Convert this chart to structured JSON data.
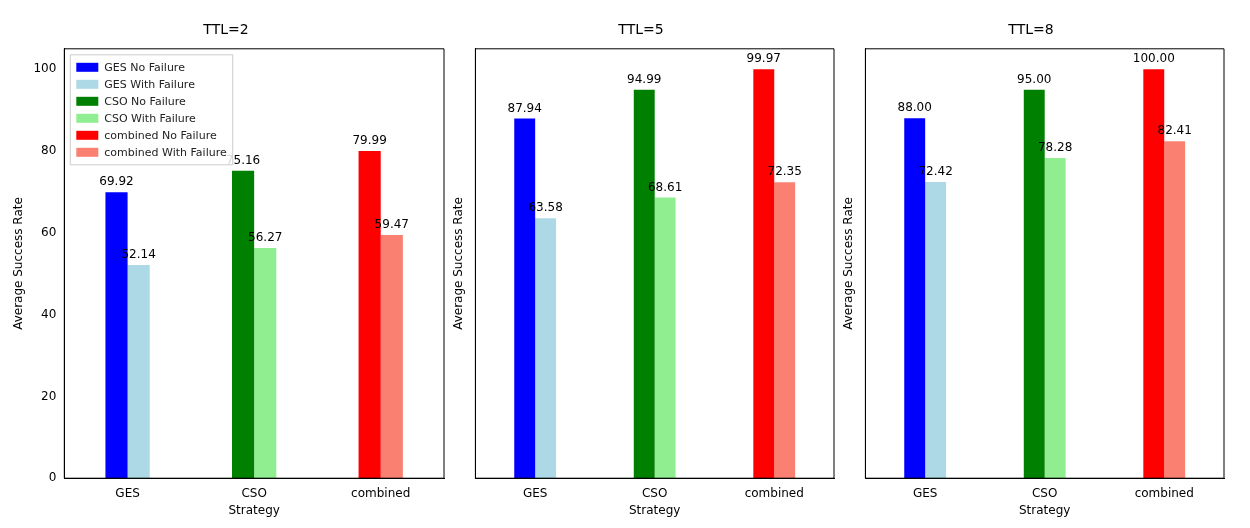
{
  "chart_data": [
    {
      "type": "bar",
      "title": "TTL=2",
      "xlabel": "Strategy",
      "ylabel": "Average Success Rate",
      "categories": [
        "GES",
        "CSO",
        "combined"
      ],
      "ylim": [
        0,
        105
      ],
      "yticks": [
        0,
        20,
        40,
        60,
        80,
        100
      ],
      "legend": "top left",
      "grid": false,
      "series": [
        {
          "name": "GES No Failure",
          "color": "#0000ff",
          "values": [
            69.92,
            null,
            null
          ],
          "value_labels": [
            "69.92",
            null,
            null
          ]
        },
        {
          "name": "GES With Failure",
          "color": "#add8e6",
          "values": [
            52.14,
            null,
            null
          ],
          "value_labels": [
            "52.14",
            null,
            null
          ]
        },
        {
          "name": "CSO No Failure",
          "color": "#008000",
          "values": [
            null,
            75.16,
            null
          ],
          "value_labels": [
            null,
            "75.16",
            null
          ]
        },
        {
          "name": "CSO With Failure",
          "color": "#90ee90",
          "values": [
            null,
            56.27,
            null
          ],
          "value_labels": [
            null,
            "56.27",
            null
          ]
        },
        {
          "name": "combined No Failure",
          "color": "#ff0000",
          "values": [
            null,
            null,
            79.99
          ],
          "value_labels": [
            null,
            null,
            "79.99"
          ]
        },
        {
          "name": "combined With Failure",
          "color": "#fa8072",
          "values": [
            null,
            null,
            59.47
          ],
          "value_labels": [
            null,
            null,
            "59.47"
          ]
        }
      ]
    },
    {
      "type": "bar",
      "title": "TTL=5",
      "xlabel": "Strategy",
      "ylabel": "Average Success Rate",
      "categories": [
        "GES",
        "CSO",
        "combined"
      ],
      "ylim": [
        0,
        105
      ],
      "yticks": [
        0,
        20,
        40,
        60,
        80,
        100
      ],
      "tick_labels": "x",
      "grid": false,
      "series": [
        {
          "color": "#0000ff",
          "values": [
            87.94,
            null,
            null
          ],
          "value_labels": [
            "87.94",
            null,
            null
          ]
        },
        {
          "color": "#add8e6",
          "values": [
            63.58,
            null,
            null
          ],
          "value_labels": [
            "63.58",
            null,
            null
          ]
        },
        {
          "color": "#008000",
          "values": [
            null,
            94.99,
            null
          ],
          "value_labels": [
            null,
            "94.99",
            null
          ]
        },
        {
          "color": "#90ee90",
          "values": [
            null,
            68.61,
            null
          ],
          "value_labels": [
            null,
            "68.61",
            null
          ]
        },
        {
          "color": "#ff0000",
          "values": [
            null,
            null,
            99.97
          ],
          "value_labels": [
            null,
            null,
            "99.97"
          ]
        },
        {
          "color": "#fa8072",
          "values": [
            null,
            null,
            72.35
          ],
          "value_labels": [
            null,
            null,
            "72.35"
          ]
        }
      ]
    },
    {
      "type": "bar",
      "title": "TTL=8",
      "xlabel": "Strategy",
      "ylabel": "Average Success Rate",
      "categories": [
        "GES",
        "CSO",
        "combined"
      ],
      "ylim": [
        0,
        105
      ],
      "yticks": [
        0,
        20,
        40,
        60,
        80,
        100
      ],
      "tick_labels": "x",
      "grid": false,
      "series": [
        {
          "color": "#0000ff",
          "values": [
            88.0,
            null,
            null
          ],
          "value_labels": [
            "88.00",
            null,
            null
          ]
        },
        {
          "color": "#add8e6",
          "values": [
            72.42,
            null,
            null
          ],
          "value_labels": [
            "72.42",
            null,
            null
          ]
        },
        {
          "color": "#008000",
          "values": [
            null,
            95.0,
            null
          ],
          "value_labels": [
            null,
            "95.00",
            null
          ]
        },
        {
          "color": "#90ee90",
          "values": [
            null,
            78.28,
            null
          ],
          "value_labels": [
            null,
            "78.28",
            null
          ]
        },
        {
          "color": "#ff0000",
          "values": [
            null,
            null,
            100.0
          ],
          "value_labels": [
            null,
            null,
            "100.00"
          ]
        },
        {
          "color": "#fa8072",
          "values": [
            null,
            null,
            82.41
          ],
          "value_labels": [
            null,
            null,
            "82.41"
          ]
        }
      ]
    }
  ]
}
